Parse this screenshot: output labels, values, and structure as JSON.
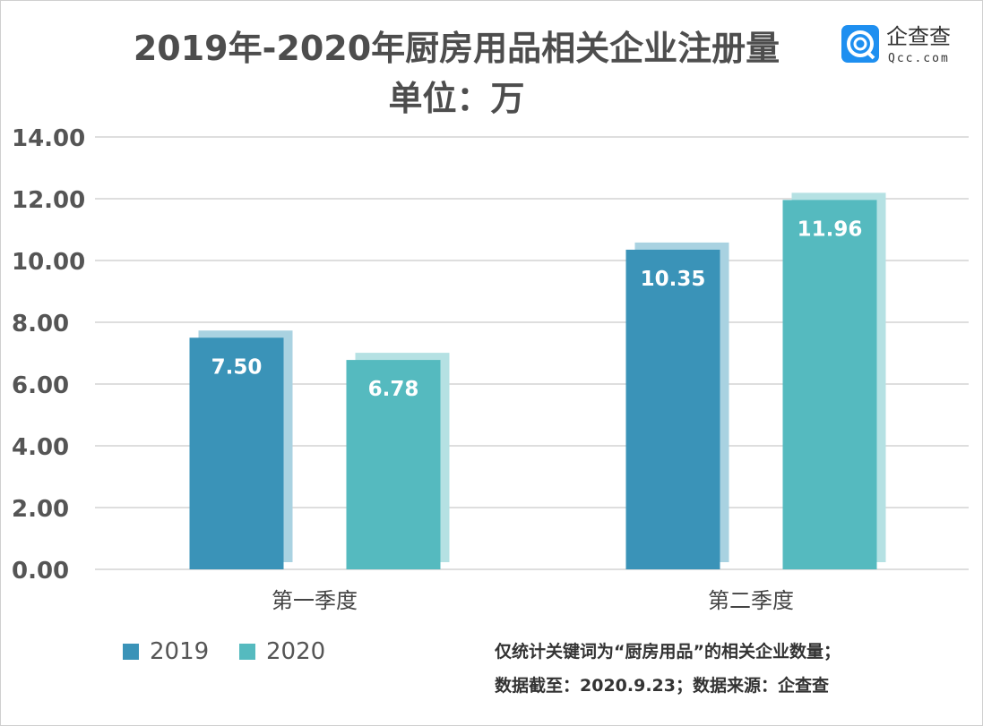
{
  "title": "2019年-2020年厨房用品相关企业注册量",
  "subtitle": "单位：万",
  "logo": {
    "name": "企查查",
    "domain": "Qcc.com",
    "color": "#1e8ff0"
  },
  "notes": [
    "仅统计关键词为“厨房用品”的相关企业数量；",
    "数据截至：2020.9.23；数据来源：企查查"
  ],
  "chart_data": {
    "type": "bar",
    "categories": [
      "第一季度",
      "第二季度"
    ],
    "series": [
      {
        "name": "2019",
        "values": [
          7.5,
          10.35
        ],
        "color": "#3a93b8",
        "shadow": "#a9d2e1"
      },
      {
        "name": "2020",
        "values": [
          6.78,
          11.96
        ],
        "color": "#55babf",
        "shadow": "#b5e1e3"
      }
    ],
    "yticks": [
      "0.00",
      "2.00",
      "4.00",
      "6.00",
      "8.00",
      "10.00",
      "12.00",
      "14.00"
    ],
    "ylim": [
      0,
      14
    ],
    "grid": true,
    "legend": "bottom-left"
  }
}
